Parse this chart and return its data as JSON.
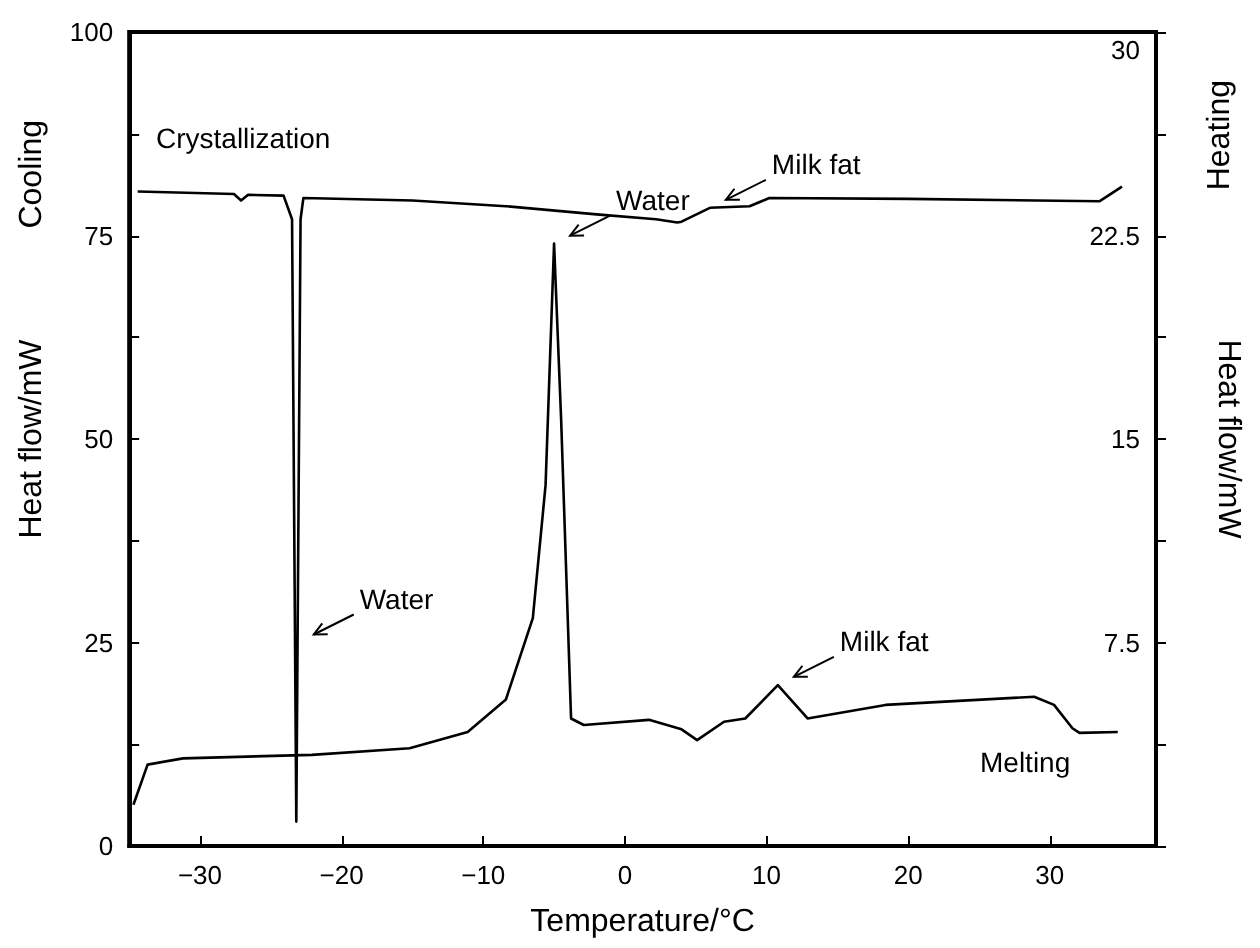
{
  "chart_data": {
    "type": "line",
    "xlabel": "Temperature/°C",
    "ylabel": "Heat flow/mW",
    "y2label": "Heat flow/mW",
    "annotations": [
      "Cooling",
      "Heating",
      "Crystallization",
      "Melting",
      {
        "text": "Milk fat",
        "x": 6.0,
        "y": 78.4
      },
      {
        "text": "Water",
        "x": -5.0,
        "y": 74
      },
      {
        "text": "Water",
        "x": -23.1,
        "y": 25
      },
      {
        "text": "Milk fat",
        "x": 10.8,
        "y": 19.8
      }
    ],
    "series": [
      {
        "color": "#000000",
        "x": [
          -34.4,
          -27.6,
          -27.1,
          -26.6,
          -24.1,
          -23.5,
          -23.2,
          -22.9,
          -22.7,
          -15,
          -8.4,
          -2,
          2.2,
          3.7,
          4.0,
          6.0,
          8.8,
          10.2,
          20,
          33.5,
          35.1
        ],
        "values": [
          80.4,
          80.1,
          79.3,
          80.0,
          79.9,
          77,
          3.0,
          77,
          79.6,
          79.3,
          78.6,
          77.6,
          77.0,
          76.6,
          76.7,
          78.4,
          78.6,
          79.6,
          79.5,
          79.2,
          81.0
        ]
      },
      {
        "color": "#000000",
        "axis": "y2",
        "x": [
          -34.7,
          -33.7,
          -31.2,
          -22.1,
          -15.2,
          -11.1,
          -8.4,
          -6.5,
          -5.6,
          -5.0,
          -4.5,
          -3.8,
          -2.9,
          1.7,
          4.0,
          5.1,
          7.0,
          8.5,
          10.8,
          12.9,
          18.4,
          28.9,
          30.3,
          31.6,
          32.1,
          34.8
        ],
        "values": [
          1.52,
          3.0,
          3.23,
          3.36,
          3.6,
          4.2,
          5.4,
          8.4,
          13.3,
          22.2,
          15.7,
          4.7,
          4.46,
          4.65,
          4.3,
          3.9,
          4.58,
          4.7,
          5.93,
          4.7,
          5.2,
          5.5,
          5.2,
          4.34,
          4.17,
          4.2
        ]
      }
    ],
    "xlim": [
      -35,
      37.5
    ],
    "xticks": [
      -30,
      -20,
      -10,
      0,
      10,
      20,
      30
    ],
    "ylim": [
      0,
      100
    ],
    "yticks": [
      0,
      {
        "value": 12.5,
        "label": null
      },
      25,
      {
        "value": 37.5,
        "label": null
      },
      50,
      {
        "value": 62.5,
        "label": null
      },
      75,
      {
        "value": 87.5,
        "label": null
      },
      100
    ],
    "y2lim": [
      0,
      30
    ],
    "y2ticks": [
      {
        "value": 0,
        "label": null
      },
      {
        "value": 3.75,
        "label": null
      },
      7.5,
      {
        "value": 11.25,
        "label": null
      },
      15,
      {
        "value": 18.75,
        "label": null
      },
      22.5,
      {
        "value": 26.25,
        "label": null
      },
      30
    ]
  }
}
